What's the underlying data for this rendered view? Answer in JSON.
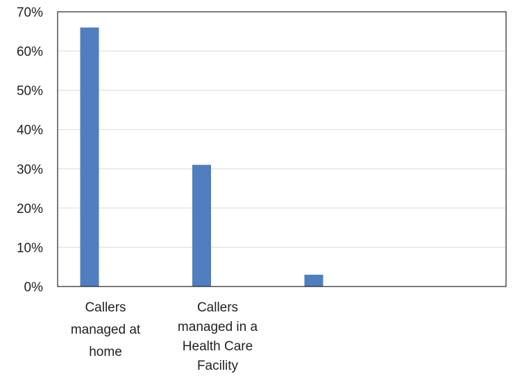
{
  "chart_data": {
    "type": "bar",
    "categories": [
      [
        "Callers",
        "managed at",
        "home"
      ],
      [
        "Callers",
        "managed in a",
        "Health Care",
        "Facility"
      ],
      [],
      []
    ],
    "values": [
      0.66,
      0.31,
      0.03,
      0
    ],
    "ylim": [
      0,
      0.7
    ],
    "yticks": [
      "0%",
      "10%",
      "20%",
      "30%",
      "40%",
      "50%",
      "60%",
      "70%"
    ],
    "grid": true,
    "colors": {
      "bar": "#4f7fbe",
      "grid": "#d9d9d9",
      "frame": "#222222"
    }
  }
}
